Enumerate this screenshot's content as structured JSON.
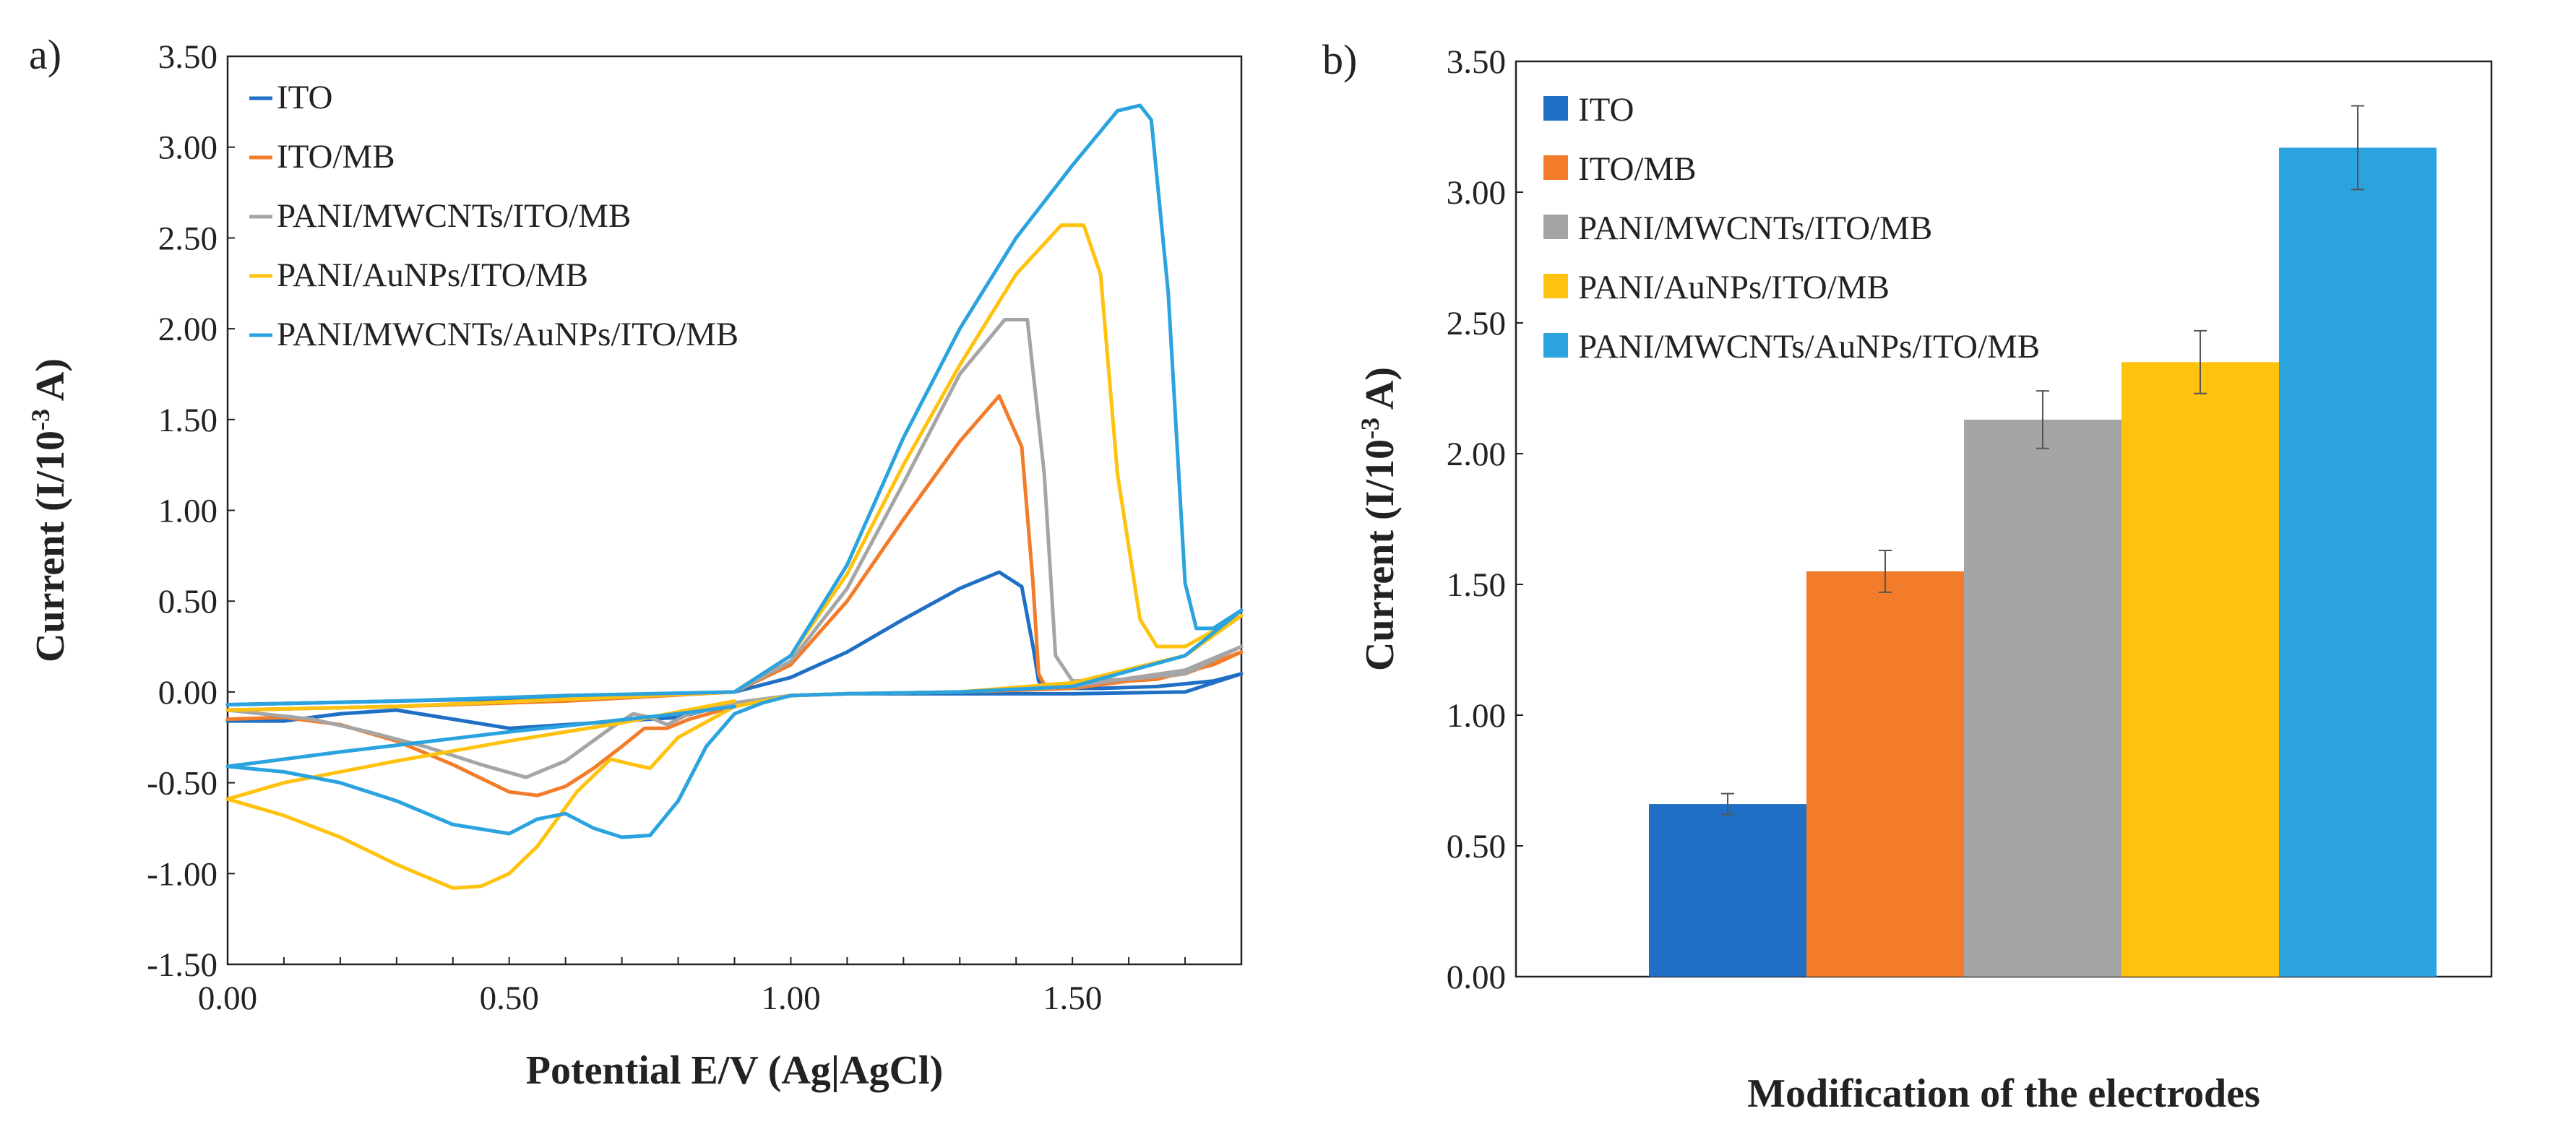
{
  "panel_a": {
    "label": "a)"
  },
  "panel_b": {
    "label": "b)"
  },
  "chart_data": [
    {
      "type": "line",
      "panel": "a)",
      "xlabel": "Potential E/V (Ag|AgCl)",
      "ylabel_main": "Current (I/10",
      "ylabel_sup": "-3",
      "ylabel_tail": " A)",
      "xlim": [
        0,
        1.8
      ],
      "ylim": [
        -1.5,
        3.5
      ],
      "xticks": [
        0,
        0.5,
        1.0,
        1.5
      ],
      "xtick_labels": [
        "0.00",
        "0.50",
        "1.00",
        "1.50"
      ],
      "yticks": [
        -1.5,
        -1.0,
        -0.5,
        0.0,
        0.5,
        1.0,
        1.5,
        2.0,
        2.5,
        3.0,
        3.5
      ],
      "ytick_labels": [
        "-1.50",
        "-1.00",
        "-0.50",
        "0.00",
        "0.50",
        "1.00",
        "1.50",
        "2.00",
        "2.50",
        "3.00",
        "3.50"
      ],
      "legend_position": "top-left",
      "series": [
        {
          "name": "ITO",
          "color": "#1f6fc5",
          "x": [
            0,
            0.3,
            0.6,
            0.9,
            1.0,
            1.1,
            1.2,
            1.3,
            1.37,
            1.41,
            1.43,
            1.44,
            1.45,
            1.55,
            1.65,
            1.75,
            1.8,
            1.8,
            1.7,
            1.5,
            1.3,
            1.1,
            1.0,
            0.95,
            0.9,
            0.85,
            0.8,
            0.7,
            0.6,
            0.5,
            0.4,
            0.3,
            0.2,
            0.1,
            0
          ],
          "y": [
            -0.07,
            -0.05,
            -0.03,
            0.0,
            0.08,
            0.22,
            0.4,
            0.57,
            0.66,
            0.58,
            0.25,
            0.06,
            0.02,
            0.02,
            0.03,
            0.06,
            0.1,
            0.1,
            0.0,
            -0.01,
            -0.01,
            -0.01,
            -0.02,
            -0.04,
            -0.06,
            -0.1,
            -0.14,
            -0.16,
            -0.18,
            -0.2,
            -0.15,
            -0.1,
            -0.12,
            -0.16,
            -0.16
          ]
        },
        {
          "name": "ITO/MB",
          "color": "#f37c2a",
          "x": [
            0,
            0.3,
            0.6,
            0.9,
            1.0,
            1.1,
            1.2,
            1.3,
            1.37,
            1.41,
            1.43,
            1.44,
            1.45,
            1.55,
            1.65,
            1.75,
            1.8,
            1.8,
            1.7,
            1.5,
            1.3,
            1.1,
            1.0,
            0.9,
            0.82,
            0.78,
            0.74,
            0.7,
            0.65,
            0.6,
            0.55,
            0.5,
            0.4,
            0.3,
            0.2,
            0.1,
            0
          ],
          "y": [
            -0.1,
            -0.08,
            -0.05,
            0.0,
            0.15,
            0.5,
            0.95,
            1.38,
            1.63,
            1.35,
            0.6,
            0.1,
            0.04,
            0.05,
            0.07,
            0.15,
            0.22,
            0.22,
            0.1,
            0.02,
            0.0,
            -0.01,
            -0.02,
            -0.08,
            -0.15,
            -0.2,
            -0.2,
            -0.3,
            -0.42,
            -0.52,
            -0.57,
            -0.55,
            -0.4,
            -0.27,
            -0.18,
            -0.14,
            -0.15
          ]
        },
        {
          "name": "PANI/MWCNTs/ITO/MB",
          "color": "#a5a5a5",
          "x": [
            0,
            0.3,
            0.6,
            0.9,
            1.0,
            1.1,
            1.2,
            1.3,
            1.38,
            1.42,
            1.45,
            1.47,
            1.5,
            1.6,
            1.7,
            1.8,
            1.8,
            1.7,
            1.5,
            1.3,
            1.1,
            1.0,
            0.9,
            0.82,
            0.78,
            0.75,
            0.72,
            0.68,
            0.6,
            0.53,
            0.45,
            0.35,
            0.25,
            0.15,
            0
          ],
          "y": [
            -0.1,
            -0.08,
            -0.04,
            0.0,
            0.17,
            0.57,
            1.15,
            1.75,
            2.05,
            2.05,
            1.2,
            0.2,
            0.06,
            0.07,
            0.1,
            0.25,
            0.25,
            0.12,
            0.03,
            0.0,
            -0.01,
            -0.02,
            -0.06,
            -0.12,
            -0.18,
            -0.14,
            -0.12,
            -0.2,
            -0.38,
            -0.47,
            -0.4,
            -0.3,
            -0.22,
            -0.15,
            -0.1
          ]
        },
        {
          "name": "PANI/AuNPs/ITO/MB",
          "color": "#ffc20e",
          "x": [
            0,
            0.3,
            0.6,
            0.9,
            1.0,
            1.1,
            1.2,
            1.3,
            1.4,
            1.48,
            1.52,
            1.55,
            1.58,
            1.62,
            1.65,
            1.7,
            1.8,
            1.8,
            1.7,
            1.5,
            1.3,
            1.1,
            1.0,
            0.9,
            0.8,
            0.75,
            0.72,
            0.68,
            0.62,
            0.55,
            0.5,
            0.45,
            0.4,
            0.3,
            0.2,
            0.1,
            0,
            0.1,
            0.3,
            0.5,
            0.7,
            0.85,
            0.9
          ],
          "y": [
            -0.1,
            -0.08,
            -0.04,
            0.0,
            0.2,
            0.65,
            1.25,
            1.8,
            2.3,
            2.57,
            2.57,
            2.3,
            1.2,
            0.4,
            0.25,
            0.25,
            0.42,
            0.42,
            0.2,
            0.05,
            0.0,
            -0.01,
            -0.02,
            -0.08,
            -0.25,
            -0.42,
            -0.4,
            -0.37,
            -0.55,
            -0.85,
            -1.0,
            -1.07,
            -1.08,
            -0.95,
            -0.8,
            -0.68,
            -0.59,
            -0.5,
            -0.38,
            -0.27,
            -0.17,
            -0.08,
            -0.05
          ]
        },
        {
          "name": "PANI/MWCNTs/AuNPs/ITO/MB",
          "color": "#2aa3df",
          "x": [
            0,
            0.3,
            0.6,
            0.9,
            1.0,
            1.1,
            1.2,
            1.3,
            1.4,
            1.5,
            1.58,
            1.62,
            1.64,
            1.67,
            1.7,
            1.72,
            1.75,
            1.8,
            1.8,
            1.7,
            1.5,
            1.3,
            1.1,
            1.0,
            0.95,
            0.9,
            0.85,
            0.8,
            0.75,
            0.7,
            0.65,
            0.6,
            0.55,
            0.5,
            0.4,
            0.3,
            0.2,
            0.1,
            0,
            0.2,
            0.5,
            0.8,
            0.9
          ],
          "y": [
            -0.07,
            -0.05,
            -0.02,
            0.0,
            0.2,
            0.7,
            1.4,
            2.0,
            2.5,
            2.9,
            3.2,
            3.23,
            3.15,
            2.2,
            0.6,
            0.35,
            0.35,
            0.45,
            0.45,
            0.2,
            0.03,
            0.0,
            -0.01,
            -0.02,
            -0.06,
            -0.12,
            -0.3,
            -0.6,
            -0.79,
            -0.8,
            -0.75,
            -0.67,
            -0.7,
            -0.78,
            -0.73,
            -0.6,
            -0.5,
            -0.44,
            -0.41,
            -0.33,
            -0.22,
            -0.12,
            -0.08
          ]
        }
      ]
    },
    {
      "type": "bar",
      "panel": "b)",
      "xlabel": "Modification of the electrodes",
      "ylabel_main": "Current (I/10",
      "ylabel_sup": "-3",
      "ylabel_tail": " A)",
      "ylim": [
        0,
        3.5
      ],
      "yticks": [
        0,
        0.5,
        1.0,
        1.5,
        2.0,
        2.5,
        3.0,
        3.5
      ],
      "ytick_labels": [
        "0.00",
        "0.50",
        "1.00",
        "1.50",
        "2.00",
        "2.50",
        "3.00",
        "3.50"
      ],
      "legend_position": "top-left",
      "categories": [
        "ITO",
        "ITO/MB",
        "PANI/MWCNTs/ITO/MB",
        "PANI/AuNPs/ITO/MB",
        "PANI/MWCNTs/AuNPs/ITO/MB"
      ],
      "values": [
        0.66,
        1.55,
        2.13,
        2.35,
        3.17
      ],
      "errors": [
        0.04,
        0.08,
        0.11,
        0.12,
        0.16
      ],
      "colors": [
        "#1f6fc5",
        "#f37c2a",
        "#a5a5a5",
        "#ffc20e",
        "#2aa3df"
      ]
    }
  ]
}
